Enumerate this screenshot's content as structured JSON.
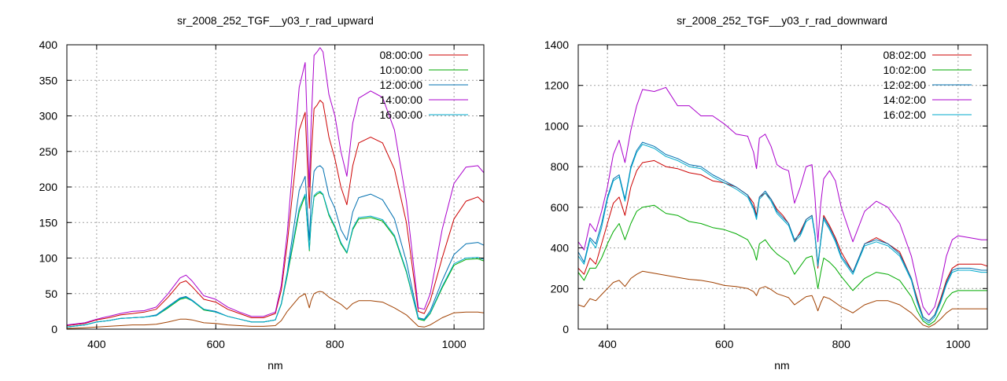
{
  "chart_data": [
    {
      "type": "line",
      "title": "sr_2008_252_TGF__y03_r_rad_upward",
      "xlabel": "nm",
      "ylabel": "",
      "xlim": [
        350,
        1050
      ],
      "ylim": [
        0,
        400
      ],
      "xticks": [
        400,
        600,
        800,
        1000
      ],
      "yticks": [
        0,
        50,
        100,
        150,
        200,
        250,
        300,
        350,
        400
      ],
      "grid": true,
      "legend_position": "top-right",
      "x": [
        350,
        380,
        400,
        420,
        440,
        460,
        480,
        500,
        520,
        540,
        550,
        560,
        580,
        600,
        620,
        640,
        660,
        680,
        700,
        710,
        720,
        740,
        750,
        757,
        760,
        765,
        770,
        775,
        780,
        790,
        800,
        810,
        820,
        830,
        840,
        860,
        880,
        900,
        920,
        940,
        950,
        960,
        980,
        1000,
        1020,
        1040,
        1050
      ],
      "series": [
        {
          "name": "08:00:00",
          "color": "#cc0000",
          "values": [
            5,
            8,
            13,
            16,
            20,
            22,
            24,
            28,
            45,
            65,
            68,
            60,
            42,
            38,
            28,
            22,
            16,
            16,
            22,
            55,
            120,
            280,
            305,
            170,
            240,
            310,
            315,
            322,
            318,
            270,
            240,
            200,
            175,
            230,
            262,
            270,
            262,
            225,
            150,
            25,
            22,
            40,
            100,
            155,
            180,
            186,
            178
          ]
        },
        {
          "name": "10:00:00",
          "color": "#00aa00",
          "values": [
            3,
            6,
            10,
            12,
            15,
            16,
            17,
            19,
            30,
            42,
            44,
            40,
            27,
            24,
            18,
            14,
            10,
            10,
            13,
            35,
            75,
            165,
            188,
            110,
            150,
            186,
            190,
            192,
            189,
            160,
            143,
            120,
            107,
            140,
            155,
            157,
            152,
            130,
            80,
            14,
            12,
            22,
            58,
            90,
            98,
            99,
            96
          ]
        },
        {
          "name": "12:00:00",
          "color": "#0070b0",
          "values": [
            3,
            6,
            10,
            12,
            15,
            16,
            17,
            20,
            32,
            44,
            46,
            41,
            28,
            25,
            18,
            14,
            10,
            10,
            13,
            36,
            80,
            195,
            215,
            125,
            178,
            222,
            228,
            230,
            226,
            188,
            170,
            140,
            125,
            165,
            185,
            190,
            182,
            155,
            95,
            16,
            14,
            26,
            68,
            105,
            120,
            122,
            118
          ]
        },
        {
          "name": "14:00:00",
          "color": "#aa00cc",
          "values": [
            6,
            9,
            14,
            18,
            22,
            25,
            26,
            31,
            50,
            72,
            76,
            68,
            47,
            42,
            31,
            24,
            18,
            18,
            24,
            62,
            135,
            340,
            375,
            200,
            285,
            385,
            390,
            396,
            390,
            330,
            300,
            250,
            215,
            290,
            325,
            335,
            326,
            280,
            180,
            30,
            28,
            50,
            140,
            205,
            228,
            230,
            220
          ]
        },
        {
          "name": "16:00:00",
          "color": "#00aacc",
          "values": [
            3,
            6,
            10,
            12,
            15,
            16,
            17,
            19,
            31,
            43,
            45,
            40,
            28,
            24,
            18,
            14,
            10,
            10,
            13,
            36,
            78,
            170,
            190,
            112,
            152,
            188,
            192,
            194,
            190,
            162,
            145,
            122,
            108,
            142,
            157,
            159,
            154,
            132,
            82,
            15,
            13,
            23,
            60,
            92,
            100,
            101,
            98
          ]
        },
        {
          "name": "",
          "color": "#a04000",
          "values": [
            1,
            2,
            3,
            4,
            5,
            6,
            6,
            7,
            10,
            14,
            14,
            13,
            9,
            8,
            6,
            5,
            4,
            4,
            5,
            12,
            25,
            45,
            50,
            30,
            40,
            50,
            52,
            53,
            52,
            45,
            40,
            35,
            28,
            36,
            40,
            40,
            38,
            30,
            20,
            4,
            3,
            6,
            16,
            23,
            24,
            24,
            23
          ]
        }
      ]
    },
    {
      "type": "line",
      "title": "sr_2008_252_TGF__y03_r_rad_downward",
      "xlabel": "nm",
      "ylabel": "",
      "xlim": [
        350,
        1050
      ],
      "ylim": [
        0,
        1400
      ],
      "xticks": [
        400,
        600,
        800,
        1000
      ],
      "yticks": [
        0,
        200,
        400,
        600,
        800,
        1000,
        1200,
        1400
      ],
      "grid": true,
      "legend_position": "top-right",
      "x": [
        350,
        360,
        370,
        380,
        390,
        400,
        410,
        420,
        430,
        440,
        450,
        460,
        480,
        500,
        520,
        540,
        560,
        580,
        600,
        620,
        640,
        650,
        655,
        660,
        670,
        680,
        690,
        700,
        710,
        720,
        730,
        740,
        750,
        755,
        760,
        765,
        770,
        780,
        790,
        800,
        820,
        840,
        860,
        880,
        900,
        920,
        930,
        940,
        950,
        960,
        970,
        980,
        990,
        1000,
        1020,
        1040,
        1050
      ],
      "series": [
        {
          "name": "08:02:00",
          "color": "#cc0000",
          "values": [
            300,
            270,
            350,
            320,
            420,
            520,
            620,
            650,
            560,
            700,
            780,
            820,
            830,
            800,
            790,
            770,
            760,
            730,
            720,
            700,
            660,
            620,
            560,
            650,
            670,
            640,
            590,
            560,
            520,
            430,
            480,
            540,
            560,
            460,
            300,
            440,
            560,
            510,
            450,
            380,
            280,
            420,
            450,
            420,
            380,
            250,
            150,
            60,
            40,
            70,
            150,
            240,
            300,
            320,
            320,
            320,
            310
          ]
        },
        {
          "name": "10:02:00",
          "color": "#00aa00",
          "values": [
            280,
            240,
            300,
            300,
            350,
            420,
            480,
            520,
            440,
            520,
            580,
            600,
            610,
            570,
            560,
            530,
            520,
            500,
            490,
            470,
            440,
            390,
            340,
            420,
            440,
            400,
            370,
            350,
            330,
            270,
            310,
            350,
            360,
            290,
            200,
            280,
            350,
            330,
            300,
            260,
            190,
            250,
            280,
            270,
            240,
            160,
            90,
            40,
            20,
            40,
            90,
            150,
            180,
            190,
            190,
            190,
            190
          ]
        },
        {
          "name": "12:02:00",
          "color": "#0070b0",
          "values": [
            380,
            330,
            450,
            420,
            520,
            650,
            740,
            760,
            640,
            800,
            880,
            920,
            900,
            860,
            840,
            810,
            800,
            760,
            730,
            700,
            660,
            600,
            550,
            650,
            680,
            640,
            580,
            550,
            520,
            440,
            470,
            540,
            560,
            470,
            320,
            440,
            550,
            500,
            440,
            360,
            280,
            420,
            440,
            420,
            370,
            250,
            140,
            60,
            40,
            70,
            140,
            230,
            290,
            300,
            300,
            290,
            290
          ]
        },
        {
          "name": "14:02:00",
          "color": "#aa00cc",
          "values": [
            430,
            390,
            520,
            480,
            580,
            700,
            860,
            930,
            820,
            980,
            1100,
            1180,
            1170,
            1190,
            1100,
            1100,
            1050,
            1050,
            1010,
            960,
            950,
            870,
            790,
            940,
            960,
            900,
            810,
            790,
            780,
            620,
            700,
            800,
            810,
            650,
            430,
            620,
            740,
            780,
            730,
            600,
            430,
            580,
            630,
            600,
            520,
            360,
            230,
            110,
            70,
            110,
            220,
            360,
            440,
            460,
            450,
            440,
            440
          ]
        },
        {
          "name": "16:02:00",
          "color": "#00aacc",
          "values": [
            360,
            320,
            440,
            400,
            500,
            640,
            730,
            750,
            630,
            790,
            870,
            910,
            890,
            850,
            830,
            800,
            790,
            750,
            720,
            690,
            650,
            590,
            540,
            640,
            670,
            630,
            570,
            540,
            510,
            430,
            460,
            530,
            550,
            460,
            310,
            430,
            540,
            490,
            430,
            350,
            270,
            410,
            430,
            410,
            360,
            240,
            130,
            50,
            30,
            60,
            130,
            220,
            280,
            290,
            290,
            280,
            280
          ]
        },
        {
          "name": "",
          "color": "#a04000",
          "values": [
            120,
            110,
            150,
            140,
            170,
            200,
            230,
            240,
            210,
            250,
            270,
            285,
            275,
            265,
            255,
            245,
            240,
            230,
            215,
            210,
            200,
            185,
            165,
            200,
            210,
            195,
            175,
            165,
            155,
            120,
            140,
            160,
            165,
            130,
            90,
            130,
            160,
            150,
            130,
            110,
            80,
            120,
            140,
            140,
            120,
            80,
            50,
            20,
            10,
            25,
            50,
            80,
            100,
            100,
            100,
            100,
            100
          ]
        }
      ]
    }
  ]
}
